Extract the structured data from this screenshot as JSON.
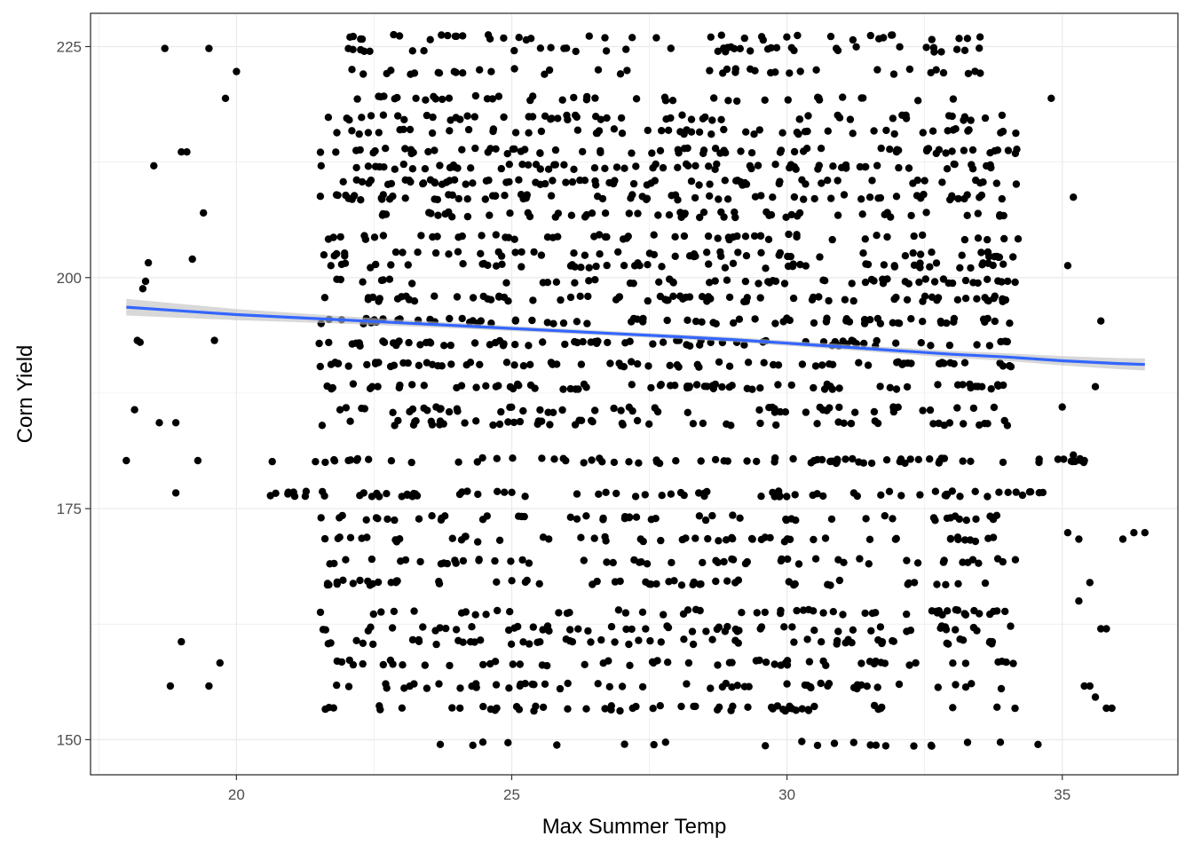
{
  "chart_data": {
    "type": "scatter",
    "title": "",
    "xlabel": "Max Summer Temp",
    "ylabel": "Corn Yield",
    "xlim": [
      17.35,
      37.1
    ],
    "ylim": [
      146.2,
      228.6
    ],
    "x_ticks": [
      20,
      25,
      30,
      35
    ],
    "y_ticks": [
      150,
      175,
      200,
      225
    ],
    "x_tick_labels": [
      "20",
      "25",
      "30",
      "35"
    ],
    "y_tick_labels": [
      "150",
      "175",
      "200",
      "225"
    ],
    "grid": true,
    "legend": "none",
    "point_color": "#000000",
    "points_note_levels": [
      149.5,
      153.4,
      155.8,
      158.3,
      160.6,
      162.0,
      163.8,
      167.0,
      169.3,
      171.7,
      174.0,
      176.6,
      180.2,
      184.3,
      185.7,
      188.2,
      190.6,
      192.9,
      195.3,
      197.7,
      199.6,
      201.3,
      202.5,
      204.4,
      206.8,
      208.7,
      210.3,
      212.0,
      213.7,
      215.8,
      217.3,
      219.4,
      222.3,
      224.7,
      226.0
    ],
    "trend": {
      "method": "loess",
      "color": "#3366FF",
      "band_color": "#BEBEBE",
      "x": [
        18.0,
        19.0,
        20.0,
        21.0,
        22.0,
        23.0,
        24.0,
        25.0,
        26.0,
        27.0,
        28.0,
        29.0,
        30.0,
        31.0,
        32.0,
        33.0,
        34.0,
        35.0,
        36.0,
        36.5
      ],
      "y": [
        196.8,
        196.4,
        196.0,
        195.7,
        195.4,
        195.1,
        194.8,
        194.5,
        194.2,
        193.9,
        193.6,
        193.3,
        192.9,
        192.5,
        192.1,
        191.7,
        191.4,
        191.0,
        190.7,
        190.6
      ],
      "se": [
        0.9,
        0.75,
        0.6,
        0.5,
        0.4,
        0.35,
        0.3,
        0.28,
        0.26,
        0.25,
        0.25,
        0.26,
        0.28,
        0.3,
        0.33,
        0.37,
        0.42,
        0.5,
        0.6,
        0.65
      ]
    }
  }
}
